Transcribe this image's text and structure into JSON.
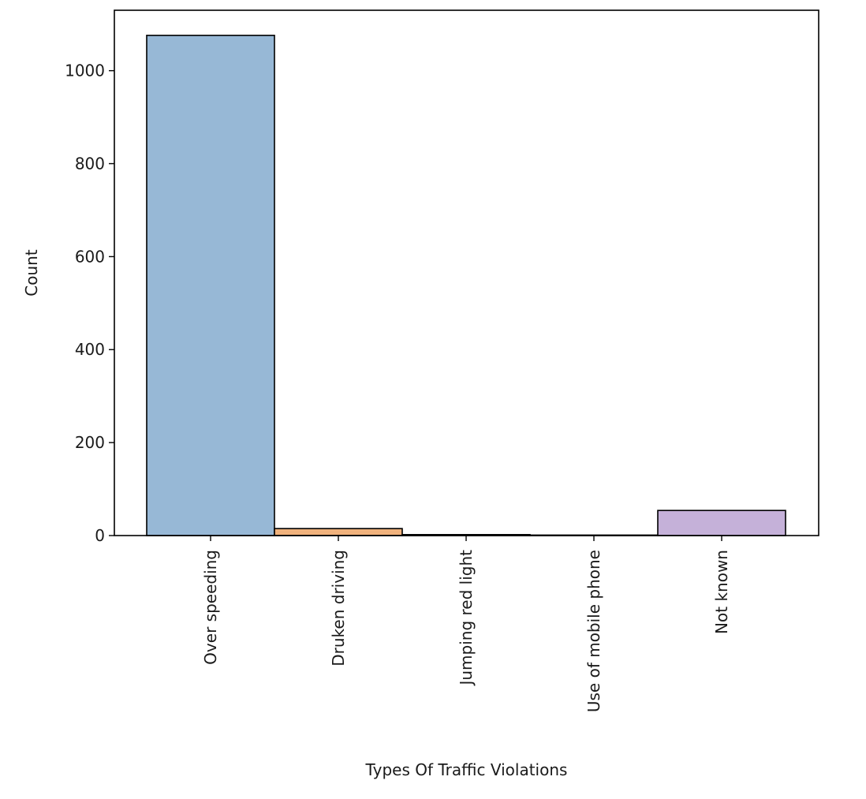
{
  "chart_data": {
    "type": "bar",
    "categories": [
      "Over speeding",
      "Druken driving",
      "Jumping red light",
      "Use of mobile phone",
      "Not known"
    ],
    "values": [
      1076,
      15,
      2,
      1,
      54
    ],
    "colors": [
      "#97b8d6",
      "#f0b27d",
      "#99c69a",
      "#ec9c9c",
      "#c5b1d9"
    ],
    "edge_color": "#000000",
    "xlabel": "Types Of Traffic Violations",
    "ylabel": "Count",
    "ylim": [
      0,
      1130
    ],
    "yticks": [
      0,
      200,
      400,
      600,
      800,
      1000
    ],
    "ytick_labels": [
      "0",
      "200",
      "400",
      "600",
      "800",
      "1000"
    ],
    "grid": false,
    "legend": "none"
  }
}
